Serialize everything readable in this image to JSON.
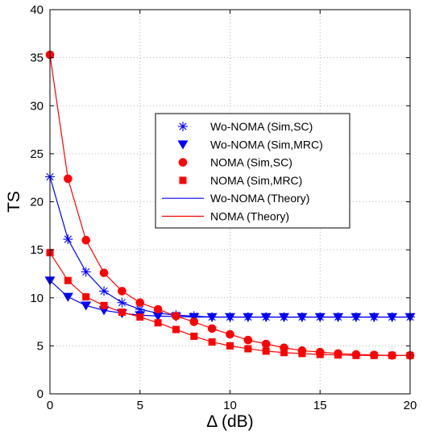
{
  "chart_data": {
    "type": "line",
    "title": "",
    "xlabel": "Δ (dB)",
    "ylabel": "TS",
    "xlim": [
      0,
      20
    ],
    "ylim": [
      0,
      40
    ],
    "xticks": [
      0,
      5,
      10,
      15,
      20
    ],
    "yticks": [
      0,
      5,
      10,
      15,
      20,
      25,
      30,
      35,
      40
    ],
    "grid": true,
    "legend_position": "center-right",
    "x": [
      0,
      1,
      2,
      3,
      4,
      5,
      6,
      7,
      8,
      9,
      10,
      11,
      12,
      13,
      14,
      15,
      16,
      17,
      18,
      19,
      20
    ],
    "series": [
      {
        "name": "Wo-NOMA (Sim,SC)",
        "marker": "asterisk",
        "line": false,
        "color": "#0000ff",
        "values": [
          22.6,
          16.1,
          12.7,
          10.7,
          9.5,
          8.8,
          8.4,
          8.2,
          8.1,
          8.0,
          8.0,
          8.0,
          8.0,
          8.0,
          8.0,
          8.0,
          8.0,
          8.0,
          8.0,
          8.0,
          8.0
        ]
      },
      {
        "name": "Wo-NOMA (Sim,MRC)",
        "marker": "triangle-down",
        "line": false,
        "color": "#0000ff",
        "values": [
          11.8,
          10.1,
          9.2,
          8.7,
          8.4,
          8.2,
          8.1,
          8.05,
          8.0,
          8.0,
          8.0,
          8.0,
          8.0,
          8.0,
          8.0,
          8.0,
          8.0,
          8.0,
          8.0,
          8.0,
          8.0
        ]
      },
      {
        "name": "NOMA (Sim,SC)",
        "marker": "circle",
        "line": false,
        "color": "#ff0000",
        "values": [
          35.3,
          22.4,
          16.0,
          12.6,
          10.7,
          9.5,
          8.8,
          8.1,
          7.5,
          6.8,
          6.2,
          5.6,
          5.2,
          4.8,
          4.5,
          4.35,
          4.2,
          4.1,
          4.05,
          4.0,
          4.0
        ]
      },
      {
        "name": "NOMA (Sim,MRC)",
        "marker": "square",
        "line": false,
        "color": "#ff0000",
        "values": [
          14.7,
          11.8,
          10.1,
          9.2,
          8.5,
          8.0,
          7.4,
          6.7,
          6.0,
          5.4,
          5.0,
          4.7,
          4.45,
          4.3,
          4.2,
          4.1,
          4.05,
          4.0,
          4.0,
          4.0,
          4.0
        ]
      },
      {
        "name": "Wo-NOMA (Theory)",
        "marker": "none",
        "line": true,
        "color": "#0000ff",
        "values": [
          22.6,
          16.1,
          12.7,
          10.7,
          9.5,
          8.8,
          8.4,
          8.2,
          8.1,
          8.0,
          8.0,
          8.0,
          8.0,
          8.0,
          8.0,
          8.0,
          8.0,
          8.0,
          8.0,
          8.0,
          8.0
        ],
        "values_2": [
          11.8,
          10.1,
          9.2,
          8.7,
          8.4,
          8.2,
          8.1,
          8.05,
          8.0,
          8.0,
          8.0,
          8.0,
          8.0,
          8.0,
          8.0,
          8.0,
          8.0,
          8.0,
          8.0,
          8.0,
          8.0
        ]
      },
      {
        "name": "NOMA (Theory)",
        "marker": "none",
        "line": true,
        "color": "#ff0000",
        "values": [
          35.3,
          22.4,
          16.0,
          12.6,
          10.7,
          9.5,
          8.8,
          8.1,
          7.5,
          6.8,
          6.2,
          5.6,
          5.2,
          4.8,
          4.5,
          4.35,
          4.2,
          4.1,
          4.05,
          4.0,
          4.0
        ],
        "values_2": [
          14.7,
          11.8,
          10.1,
          9.2,
          8.5,
          8.0,
          7.4,
          6.7,
          6.0,
          5.4,
          5.0,
          4.7,
          4.45,
          4.3,
          4.2,
          4.1,
          4.05,
          4.0,
          4.0,
          4.0,
          4.0
        ]
      }
    ]
  }
}
